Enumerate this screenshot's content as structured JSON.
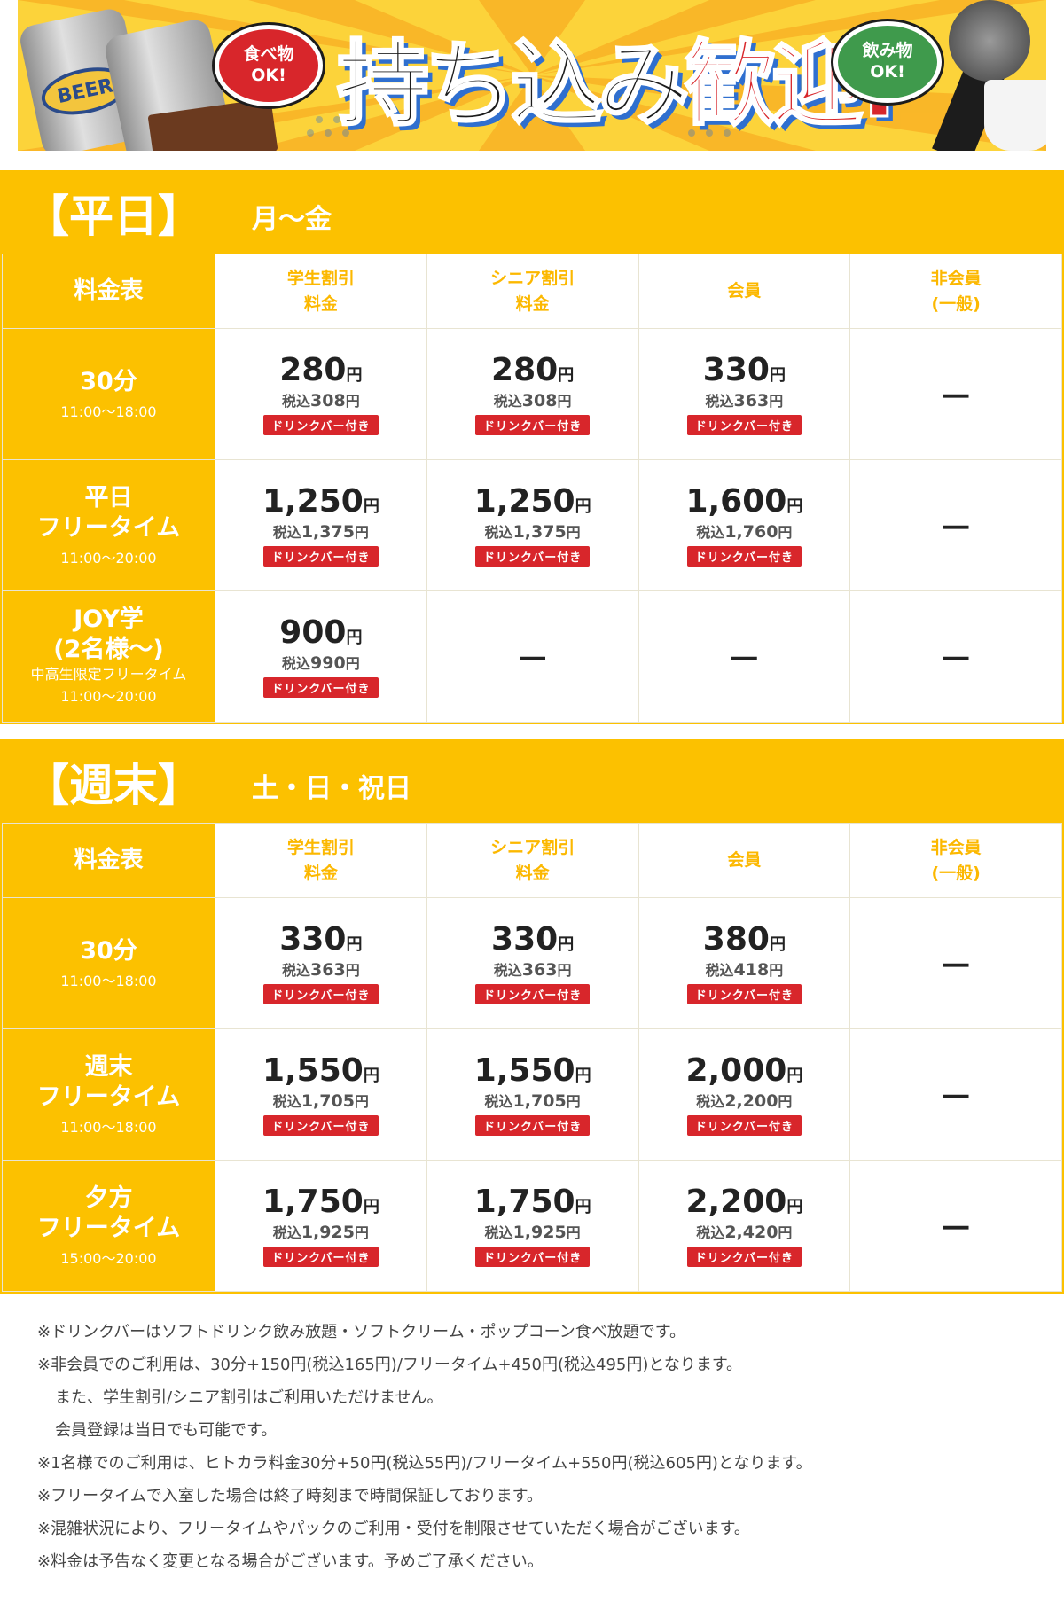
{
  "banner": {
    "headline_black": "持ち込み",
    "headline_red": "歓迎!",
    "food_badge": [
      "食べ物",
      "OK!"
    ],
    "drink_badge": [
      "飲み物",
      "OK!"
    ],
    "can_label": "BEER"
  },
  "colors": {
    "accent": "#fcc100",
    "badge_red": "#d8262b",
    "header_text": "#fcb800"
  },
  "common": {
    "corner_label": "料金表",
    "columns": [
      [
        "学生割引",
        "料金"
      ],
      [
        "シニア割引",
        "料金"
      ],
      [
        "会員"
      ],
      [
        "非会員",
        "(一般)"
      ]
    ],
    "tax_prefix": "税込",
    "yen": "円",
    "drink_bar": "ドリンクバー付き",
    "dash": "－"
  },
  "weekday": {
    "title": "【平日】",
    "days": "月～金",
    "rows": [
      {
        "name": [
          "30分"
        ],
        "sub": [],
        "time": "11:00～18:00",
        "cells": [
          {
            "price": "280",
            "tax": "308"
          },
          {
            "price": "280",
            "tax": "308"
          },
          {
            "price": "330",
            "tax": "363"
          },
          null
        ]
      },
      {
        "name": [
          "平日",
          "フリータイム"
        ],
        "sub": [],
        "time": "11:00～20:00",
        "cells": [
          {
            "price": "1,250",
            "tax": "1,375"
          },
          {
            "price": "1,250",
            "tax": "1,375"
          },
          {
            "price": "1,600",
            "tax": "1,760"
          },
          null
        ]
      },
      {
        "name": [
          "JOY学",
          "(2名様～)"
        ],
        "sub": [
          "中高生限定フリータイム",
          "11:00～20:00"
        ],
        "time": "",
        "cells": [
          {
            "price": "900",
            "tax": "990"
          },
          null,
          null,
          null
        ]
      }
    ]
  },
  "weekend": {
    "title": "【週末】",
    "days": "土・日・祝日",
    "rows": [
      {
        "name": [
          "30分"
        ],
        "sub": [],
        "time": "11:00～18:00",
        "cells": [
          {
            "price": "330",
            "tax": "363"
          },
          {
            "price": "330",
            "tax": "363"
          },
          {
            "price": "380",
            "tax": "418"
          },
          null
        ]
      },
      {
        "name": [
          "週末",
          "フリータイム"
        ],
        "sub": [],
        "time": "11:00～18:00",
        "cells": [
          {
            "price": "1,550",
            "tax": "1,705"
          },
          {
            "price": "1,550",
            "tax": "1,705"
          },
          {
            "price": "2,000",
            "tax": "2,200"
          },
          null
        ]
      },
      {
        "name": [
          "夕方",
          "フリータイム"
        ],
        "sub": [],
        "time": "15:00～20:00",
        "cells": [
          {
            "price": "1,750",
            "tax": "1,925"
          },
          {
            "price": "1,750",
            "tax": "1,925"
          },
          {
            "price": "2,200",
            "tax": "2,420"
          },
          null
        ]
      }
    ]
  },
  "notes": [
    {
      "text": "※ドリンクバーはソフトドリンク飲み放題・ソフトクリーム・ポップコーン食べ放題です。",
      "indent": false
    },
    {
      "text": "※非会員でのご利用は、30分+150円(税込165円)/フリータイム+450円(税込495円)となります。",
      "indent": false
    },
    {
      "text": "また、学生割引/シニア割引はご利用いただけません。",
      "indent": true
    },
    {
      "text": "会員登録は当日でも可能です。",
      "indent": true
    },
    {
      "text": "※1名様でのご利用は、ヒトカラ料金30分+50円(税込55円)/フリータイム+550円(税込605円)となります。",
      "indent": false
    },
    {
      "text": "※フリータイムで入室した場合は終了時刻まで時間保証しております。",
      "indent": false
    },
    {
      "text": "※混雑状況により、フリータイムやパックのご利用・受付を制限させていただく場合がございます。",
      "indent": false
    },
    {
      "text": "※料金は予告なく変更となる場合がございます。予めご了承ください。",
      "indent": false
    }
  ]
}
